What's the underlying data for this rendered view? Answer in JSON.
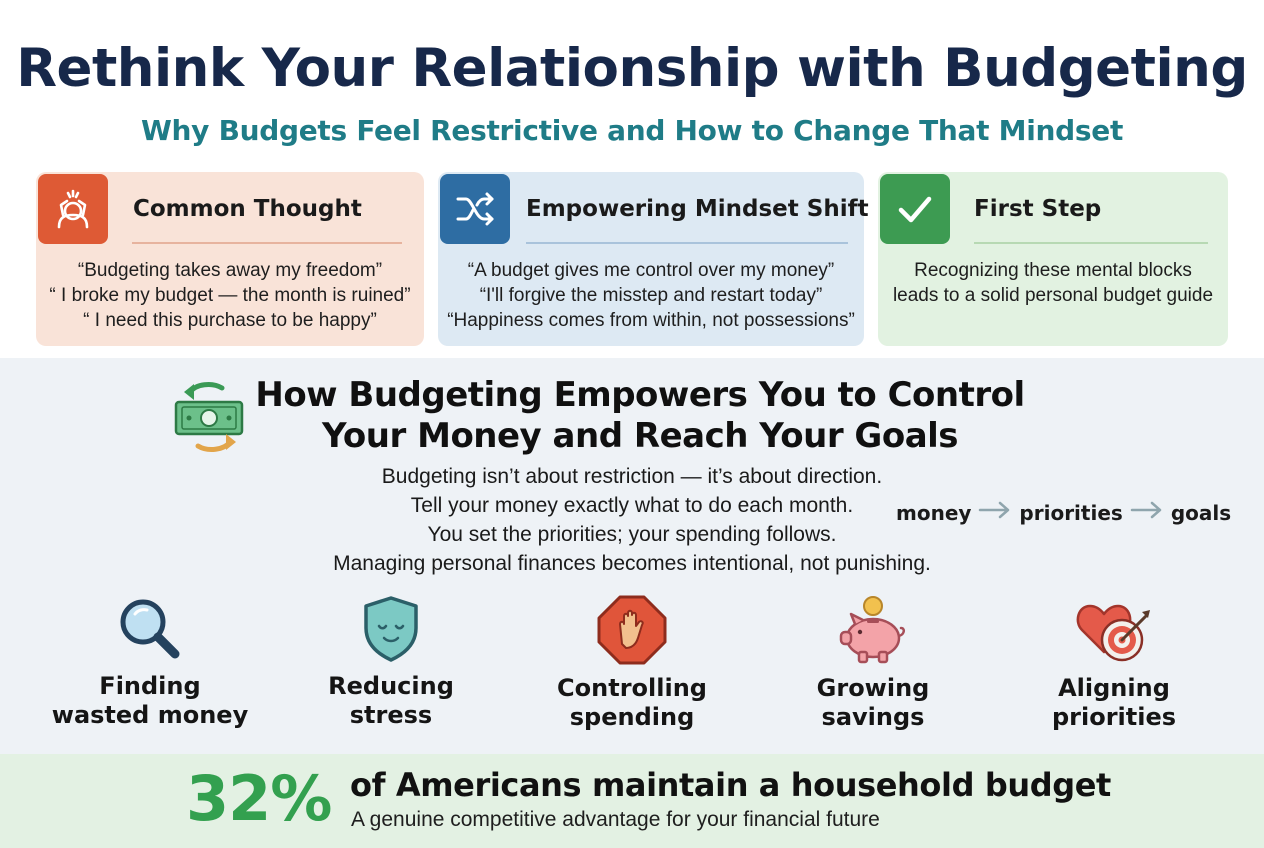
{
  "header": {
    "title": "Rethink Your Relationship with Budgeting",
    "subtitle": "Why Budgets Feel Restrictive and How to Change That Mindset"
  },
  "cards": [
    {
      "title": "Common Thought",
      "icon": "stressed-person-icon",
      "color": "#de5a35",
      "lines": [
        "“Budgeting takes away my freedom”",
        "“ I broke my budget — the month is ruined”",
        "“ I need this purchase to be happy”"
      ]
    },
    {
      "title": "Empowering Mindset Shift",
      "icon": "shuffle-arrows-icon",
      "color": "#2e6da3",
      "lines": [
        "“A budget gives me control over my money”",
        "“I'll forgive the misstep and restart today”",
        "“Happiness comes from within, not possessions”"
      ]
    },
    {
      "title": "First Step",
      "icon": "checkmark-icon",
      "color": "#3d9b52",
      "lines": [
        "Recognizing these mental blocks",
        "leads to a solid personal budget guide"
      ]
    }
  ],
  "section": {
    "icon": "money-cycle-icon",
    "title_line1": "How Budgeting Empowers You to Control",
    "title_line2": "Your Money and Reach Your Goals",
    "lines": [
      "Budgeting isn’t about restriction — it’s about direction.",
      "Tell your money exactly what to do each month.",
      "You set the priorities; your spending follows.",
      "Managing personal finances becomes intentional, not punishing."
    ],
    "flow": [
      "money",
      "priorities",
      "goals"
    ]
  },
  "benefits": [
    {
      "icon": "magnifying-glass-icon",
      "line1": "Finding",
      "line2": "wasted money"
    },
    {
      "icon": "calm-shield-icon",
      "line1": "Reducing",
      "line2": "stress"
    },
    {
      "icon": "stop-hand-icon",
      "line1": "Controlling",
      "line2": "spending"
    },
    {
      "icon": "piggy-bank-icon",
      "line1": "Growing",
      "line2": "savings"
    },
    {
      "icon": "heart-target-icon",
      "line1": "Aligning",
      "line2": "priorities"
    }
  ],
  "stat": {
    "value": "32%",
    "text": "of Americans maintain a household budget",
    "subtext": "A genuine competitive advantage for your financial future",
    "color": "#33a04f"
  }
}
